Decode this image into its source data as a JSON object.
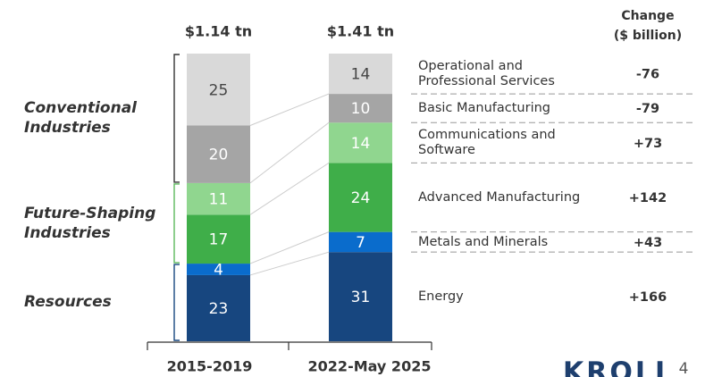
{
  "chart_data": {
    "type": "stacked_bar",
    "categories": [
      "2015-2019",
      "2022-May 2025"
    ],
    "bar_totals": [
      "$1.14 tn",
      "$1.41 tn"
    ],
    "ylim": [
      0,
      100
    ],
    "change_header": [
      "Change",
      "($ billion)"
    ],
    "groups": [
      {
        "name": "Resources",
        "color": "#17467f",
        "series": [
          {
            "name": "Energy",
            "color": "#17467f",
            "text_color": "#ffffff",
            "values": [
              23,
              31
            ],
            "change": 166,
            "change_label": "+166"
          },
          {
            "name": "Metals and Minerals",
            "color": "#0a6ccc",
            "text_color": "#ffffff",
            "values": [
              4,
              7
            ],
            "change": 43,
            "change_label": "+43"
          }
        ]
      },
      {
        "name": "Future-Shaping Industries",
        "color": "#5cb85c",
        "series": [
          {
            "name": "Advanced Manufacturing",
            "color": "#3fae49",
            "text_color": "#ffffff",
            "values": [
              17,
              24
            ],
            "change": 142,
            "change_label": "+142"
          },
          {
            "name": "Communications and Software",
            "color": "#90d68f",
            "text_color": "#ffffff",
            "values": [
              11,
              14
            ],
            "change": 73,
            "change_label": "+73"
          }
        ]
      },
      {
        "name": "Conventional Industries",
        "color": "#333333",
        "series": [
          {
            "name": "Basic Manufacturing",
            "color": "#a5a5a5",
            "text_color": "#ffffff",
            "values": [
              20,
              10
            ],
            "change": -79
          },
          {
            "name": "Operational and Professional Services",
            "color": "#d9d9d9",
            "text_color": "#444444",
            "values": [
              25,
              14
            ],
            "change": -76
          }
        ]
      }
    ]
  },
  "logo": "KROLL",
  "page_number": "4"
}
